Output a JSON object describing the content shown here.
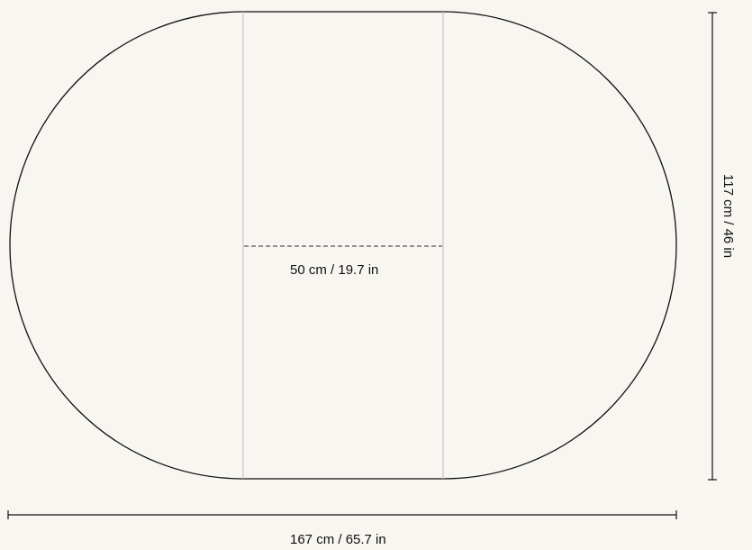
{
  "diagram": {
    "shape": "stadium table top with extension leaf",
    "dimensions": {
      "leaf_label": "50 cm / 19.7 in",
      "width_label": "167 cm / 65.7 in",
      "height_label": "117 cm / 46 in"
    },
    "colors": {
      "background": "#f8f6f1",
      "outline": "#111111",
      "leaf_lines": "#c8c8c8",
      "dashed_line": "#555555",
      "dimension_lines": "#111111"
    }
  }
}
